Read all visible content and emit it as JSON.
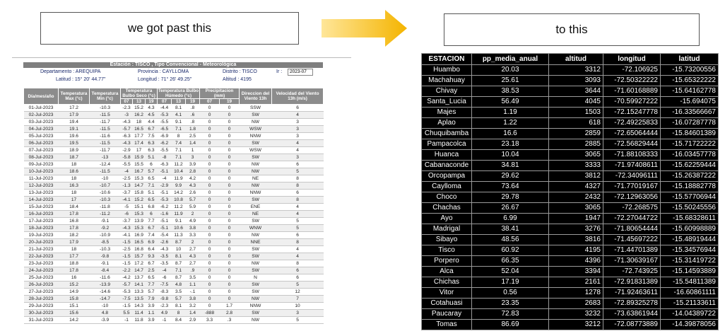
{
  "caption_left": "we got past this",
  "caption_right": "to this",
  "left_table": {
    "title": "Estación : TISCO , Tipo Convencional - Meteorológica",
    "info": [
      [
        "Departamento : AREQUIPA",
        "Provincia : CAYLLOMA",
        "Distrito : TISCO",
        "Ir :"
      ],
      [
        "Latitud : 15° 20' 44.77''",
        "Longitud : 71° 26' 49.25''",
        "Altitud : 4195"
      ]
    ],
    "month": "2023-07",
    "headers": [
      "Día/mes/año",
      "Temperatura Max (°c)",
      "Temperatura Min (°c)",
      "Temperatura Bulbo Seco (°c)",
      "Temperatura Bulbo Húmedo (°c)",
      "Precipitacion (mm)",
      "Direccion del Viento 13h",
      "Velocidad del Viento 13h (m/s)"
    ],
    "subheaders": [
      "07",
      "13",
      "19",
      "07",
      "13",
      "19",
      "07",
      "19"
    ],
    "rows": [
      [
        "01-Jul-2023",
        "17.2",
        "-10.3",
        "-2.3",
        "15.2",
        "4.3",
        "-4.4",
        "8.1",
        ".8",
        "0",
        "0",
        "SSW",
        "6"
      ],
      [
        "02-Jul-2023",
        "17.9",
        "-11.5",
        "-3",
        "16.2",
        "4.5",
        "-5.3",
        "4.1",
        ".6",
        "0",
        "0",
        "SW",
        "4"
      ],
      [
        "03-Jul-2023",
        "19.4",
        "-11.7",
        "-4.3",
        "18",
        "4.4",
        "-5.5",
        "9.1",
        ".8",
        "0",
        "0",
        "NW",
        "3"
      ],
      [
        "04-Jul-2023",
        "19.1",
        "-11.5",
        "-5.7",
        "16.5",
        "6.7",
        "-6.5",
        "7.1",
        "1.8",
        "0",
        "0",
        "WSW",
        "3"
      ],
      [
        "05-Jul-2023",
        "19.6",
        "-11.6",
        "-6.3",
        "17.7",
        "7.5",
        "-6.9",
        "8",
        "2.5",
        "0",
        "0",
        "NNW",
        "3"
      ],
      [
        "06-Jul-2023",
        "19.5",
        "-11.5",
        "-4.3",
        "17.4",
        "6.3",
        "-6.2",
        "7.4",
        "1.4",
        "0",
        "0",
        "SW",
        "4"
      ],
      [
        "07-Jul-2023",
        "18.9",
        "-11.7",
        "-2.9",
        "17",
        "6.3",
        "-5.5",
        "7.1",
        "1",
        "0",
        "0",
        "WSW",
        "4"
      ],
      [
        "08-Jul-2023",
        "18.7",
        "-13",
        "-5.8",
        "15.9",
        "5.1",
        "-8",
        "7.1",
        "3",
        "0",
        "0",
        "SW",
        "3"
      ],
      [
        "09-Jul-2023",
        "18",
        "-12.4",
        "-5.5",
        "15.5",
        "6",
        "-6.3",
        "11.2",
        "3.9",
        "0",
        "0",
        "NW",
        "6"
      ],
      [
        "10-Jul-2023",
        "18.6",
        "-11.5",
        "-4",
        "16.7",
        "5.7",
        "-5.1",
        "10.4",
        "2.8",
        "0",
        "0",
        "NW",
        "5"
      ],
      [
        "11-Jul-2023",
        "18",
        "-10",
        "-2.5",
        "15.3",
        "6.5",
        "-4",
        "11.9",
        "4.2",
        "0",
        "0",
        "NE",
        "8"
      ],
      [
        "12-Jul-2023",
        "16.3",
        "-10.7",
        "-1.3",
        "14.7",
        "7.1",
        "-2.9",
        "9.9",
        "4.3",
        "0",
        "0",
        "NW",
        "8"
      ],
      [
        "13-Jul-2023",
        "18",
        "-10.6",
        "-3.7",
        "15.8",
        "5.1",
        "-5.1",
        "14.2",
        "2.6",
        "0",
        "0",
        "NNW",
        "6"
      ],
      [
        "14-Jul-2023",
        "17",
        "-10.3",
        "-4.1",
        "15.2",
        "6.5",
        "-5.3",
        "10.8",
        "5.7",
        "0",
        "0",
        "SW",
        "8"
      ],
      [
        "15-Jul-2023",
        "18.4",
        "-11.8",
        "-5",
        "15.1",
        "6.8",
        "-6.2",
        "11.2",
        "5.9",
        "0",
        "0",
        "ENE",
        "4"
      ],
      [
        "16-Jul-2023",
        "17.8",
        "-11.2",
        "-6",
        "15.3",
        "6",
        "-1.6",
        "11.9",
        "2",
        "0",
        "0",
        "NE",
        "4"
      ],
      [
        "17-Jul-2023",
        "16.8",
        "-9.1",
        "-3.7",
        "13.9",
        "7.7",
        "-5.1",
        "9.1",
        "4.9",
        "0",
        "0",
        "SW",
        "5"
      ],
      [
        "18-Jul-2023",
        "17.8",
        "-9.2",
        "-4.3",
        "15.3",
        "6.7",
        "-5.1",
        "10.6",
        "3.8",
        "0",
        "0",
        "WNW",
        "5"
      ],
      [
        "19-Jul-2023",
        "18.2",
        "-10.9",
        "-4.1",
        "16.9",
        "7.4",
        "-5.4",
        "11.3",
        "3.3",
        "0",
        "0",
        "NW",
        "6"
      ],
      [
        "20-Jul-2023",
        "17.9",
        "-8.5",
        "-1.5",
        "16.5",
        "6.9",
        "-2.6",
        "8.7",
        "2",
        "0",
        "0",
        "NNE",
        "8"
      ],
      [
        "21-Jul-2023",
        "18",
        "-10.3",
        "-2.5",
        "16.8",
        "6.4",
        "-4.3",
        "10",
        "2.7",
        "0",
        "0",
        "SW",
        "4"
      ],
      [
        "22-Jul-2023",
        "17.7",
        "-9.8",
        "-1.5",
        "15.7",
        "9.3",
        "-3.5",
        "8.1",
        "4.3",
        "0",
        "0",
        "SW",
        "4"
      ],
      [
        "23-Jul-2023",
        "18.8",
        "-9.1",
        "-1.5",
        "17.2",
        "6.7",
        "-3.5",
        "8.7",
        "2.7",
        "0",
        "0",
        "NW",
        "8"
      ],
      [
        "24-Jul-2023",
        "17.8",
        "-8.4",
        "-2.2",
        "14.7",
        "2.5",
        "-4",
        "7.1",
        ".9",
        "0",
        "0",
        "SW",
        "6"
      ],
      [
        "25-Jul-2023",
        "16",
        "-11.6",
        "-4.2",
        "13.7",
        "6.5",
        "-6",
        "8.7",
        "3.5",
        "0",
        "0",
        "N",
        "6"
      ],
      [
        "26-Jul-2023",
        "15.2",
        "-13.9",
        "-5.7",
        "14.1",
        "7.7",
        "-7.5",
        "4.8",
        "1.1",
        "0",
        "0",
        "SW",
        "5"
      ],
      [
        "27-Jul-2023",
        "14.9",
        "-14.6",
        "-5.3",
        "13.3",
        "5.7",
        "-8.3",
        "3.5",
        "-.1",
        "0",
        "0",
        "SW",
        "12"
      ],
      [
        "28-Jul-2023",
        "15.8",
        "-14.7",
        "-7.5",
        "13.5",
        "7.9",
        "-9.8",
        "5.7",
        "3.8",
        "0",
        "0",
        "NW",
        "7"
      ],
      [
        "29-Jul-2023",
        "15.1",
        "-10",
        "-1.5",
        "14.3",
        "3.9",
        "-2.3",
        "8.1",
        "3.2",
        "0",
        "1.7",
        "NNW",
        "10"
      ],
      [
        "30-Jul-2023",
        "15.6",
        "4.8",
        "5.5",
        "11.4",
        "1.1",
        "4.9",
        "8",
        "1.4",
        "-888",
        "2.8",
        "SW",
        "3"
      ],
      [
        "31-Jul-2023",
        "14.2",
        "-3.9",
        "-1",
        "11.8",
        "3.9",
        "-1",
        "8.4",
        "2.9",
        "3.3",
        ".3",
        "NW",
        "5"
      ]
    ]
  },
  "right_table": {
    "headers": [
      "ESTACION",
      "pp_media_anual",
      "altitud",
      "longitud",
      "latitud"
    ],
    "rows": [
      [
        "Huambo",
        "20.03",
        "3312",
        "-72.106925",
        "-15.73200556"
      ],
      [
        "Machahuay",
        "25.61",
        "3093",
        "-72.50322222",
        "-15.65322222"
      ],
      [
        "Chivay",
        "38.53",
        "3644",
        "-71.60168889",
        "-15.64162778"
      ],
      [
        "Santa_Lucia",
        "56.49",
        "4045",
        "-70.59927222",
        "-15.694075"
      ],
      [
        "Majes",
        "1.19",
        "1503",
        "-72.15247778",
        "-16.33566667"
      ],
      [
        "Aplao",
        "1.22",
        "618",
        "-72.49225833",
        "-16.07287778"
      ],
      [
        "Chuquibamba",
        "16.6",
        "2859",
        "-72.65064444",
        "-15.84601389"
      ],
      [
        "Pampacolca",
        "23.18",
        "2885",
        "-72.56829444",
        "-15.71722222"
      ],
      [
        "Huanca",
        "10.04",
        "3065",
        "-71.88108333",
        "-16.03457778"
      ],
      [
        "Cabanaconde",
        "34.81",
        "3333",
        "-71.97408611",
        "-15.62259444"
      ],
      [
        "Orcopampa",
        "29.62",
        "3812",
        "-72.34096111",
        "-15.26387222"
      ],
      [
        "Caylloma",
        "73.64",
        "4327",
        "-71.77019167",
        "-15.18882778"
      ],
      [
        "Choco",
        "29.78",
        "2432",
        "-72.12963056",
        "-15.57706944"
      ],
      [
        "Chachas",
        "26.67",
        "3065",
        "-72.268575",
        "-15.50245556"
      ],
      [
        "Ayo",
        "6.99",
        "1947",
        "-72.27044722",
        "-15.68328611"
      ],
      [
        "Madrigal",
        "38.41",
        "3276",
        "-71.80654444",
        "-15.60998889"
      ],
      [
        "Sibayo",
        "48.56",
        "3816",
        "-71.45697222",
        "-15.48919444"
      ],
      [
        "Tisco",
        "60.92",
        "4195",
        "-71.44701389",
        "-15.34576944"
      ],
      [
        "Porpero",
        "66.35",
        "4396",
        "-71.30639167",
        "-15.31419722"
      ],
      [
        "Alca",
        "52.04",
        "3394",
        "-72.743925",
        "-15.14593889"
      ],
      [
        "Chichas",
        "17.19",
        "2161",
        "-72.91831389",
        "-15.54811389"
      ],
      [
        "Vitor",
        "0.56",
        "1278",
        "-71.92463611",
        "-16.60861111"
      ],
      [
        "Cotahuasi",
        "23.35",
        "2683",
        "-72.89325278",
        "-15.21133611"
      ],
      [
        "Paucaray",
        "72.83",
        "3232",
        "-73.63861944",
        "-14.04389722"
      ],
      [
        "Tomas",
        "86.69",
        "3212",
        "-72.08773889",
        "-14.39878056"
      ]
    ]
  }
}
